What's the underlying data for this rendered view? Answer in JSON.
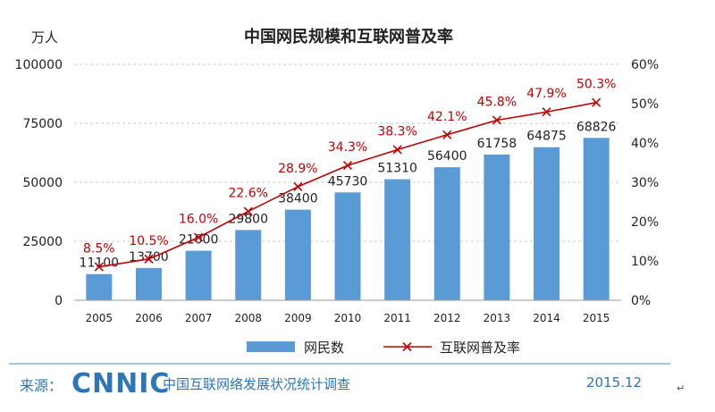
{
  "chart_data": {
    "type": "bar",
    "title": "中国网民规模和互联网普及率",
    "left_unit": "万人",
    "categories": [
      "2005",
      "2006",
      "2007",
      "2008",
      "2009",
      "2010",
      "2011",
      "2012",
      "2013",
      "2014",
      "2015"
    ],
    "series": [
      {
        "name": "网民数",
        "type": "bar",
        "axis": "left",
        "values": [
          11100,
          13700,
          21000,
          29800,
          38400,
          45730,
          51310,
          56400,
          61758,
          64875,
          68826
        ],
        "labels": [
          "11100",
          "13700",
          "21000",
          "29800",
          "38400",
          "45730",
          "51310",
          "56400",
          "61758",
          "64875",
          "68826"
        ]
      },
      {
        "name": "互联网普及率",
        "type": "line",
        "axis": "right",
        "values": [
          8.5,
          10.5,
          16.0,
          22.6,
          28.9,
          34.3,
          38.3,
          42.1,
          45.8,
          47.9,
          50.3
        ],
        "labels": [
          "8.5%",
          "10.5%",
          "16.0%",
          "22.6%",
          "28.9%",
          "34.3%",
          "38.3%",
          "42.1%",
          "45.8%",
          "47.9%",
          "50.3%"
        ]
      }
    ],
    "y_left": {
      "min": 0,
      "max": 100000,
      "ticks": [
        0,
        25000,
        50000,
        75000,
        100000
      ],
      "tick_labels": [
        "0",
        "25000",
        "50000",
        "75000",
        "100000"
      ]
    },
    "y_right": {
      "min": 0,
      "max": 60,
      "ticks": [
        0,
        10,
        20,
        30,
        40,
        50,
        60
      ],
      "tick_labels": [
        "0%",
        "10%",
        "20%",
        "30%",
        "40%",
        "50%",
        "60%"
      ]
    },
    "grid": "dashed-horizontal",
    "legend_position": "bottom-center",
    "colors": {
      "bar": "#5b9bd5",
      "line": "#c00000",
      "text": "#222222"
    }
  },
  "footer": {
    "source_label": "来源：",
    "logo": "CNNIC",
    "organization": "中国互联网络发展状况统计调查",
    "date": "2015.12",
    "trailing_mark": "↵"
  }
}
